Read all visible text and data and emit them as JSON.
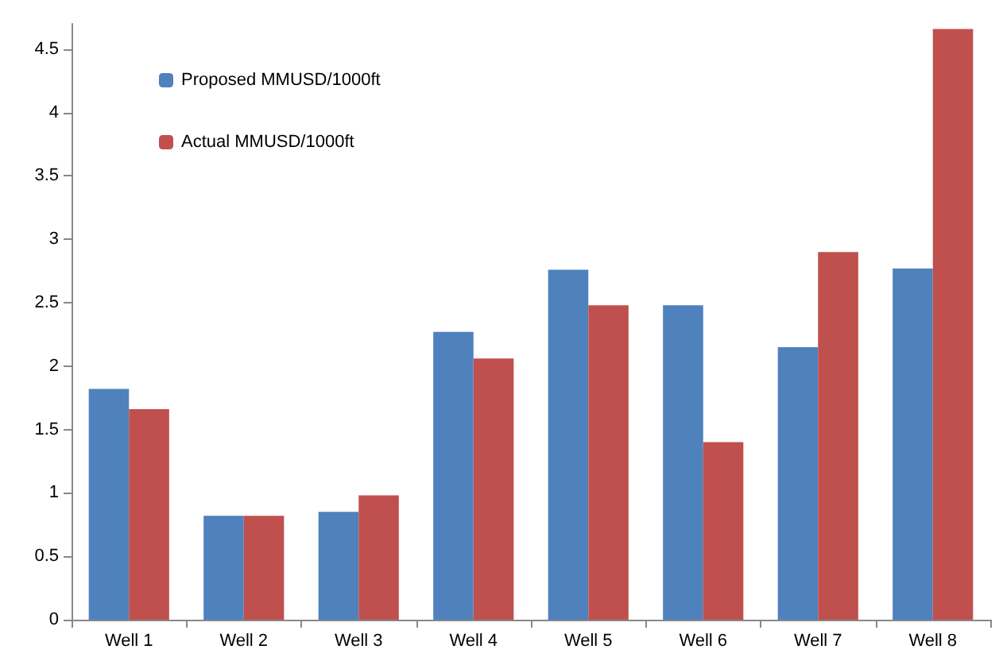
{
  "chart_data": {
    "type": "bar",
    "categories": [
      "Well 1",
      "Well 2",
      "Well 3",
      "Well 4",
      "Well 5",
      "Well 6",
      "Well 7",
      "Well 8"
    ],
    "series": [
      {
        "name": "Proposed MMUSD/1000ft",
        "color": "#4f81bd",
        "values": [
          1.82,
          0.82,
          0.85,
          2.27,
          2.76,
          2.48,
          2.15,
          2.77
        ]
      },
      {
        "name": "Actual MMUSD/1000ft",
        "color": "#c0504d",
        "values": [
          1.66,
          0.82,
          0.98,
          2.06,
          2.48,
          1.4,
          2.9,
          4.66
        ]
      }
    ],
    "ylim": [
      0,
      4.7
    ],
    "yticks": [
      0,
      0.5,
      1,
      1.5,
      2,
      2.5,
      3,
      3.5,
      4,
      4.5
    ],
    "grid": false,
    "legend": "top left"
  }
}
